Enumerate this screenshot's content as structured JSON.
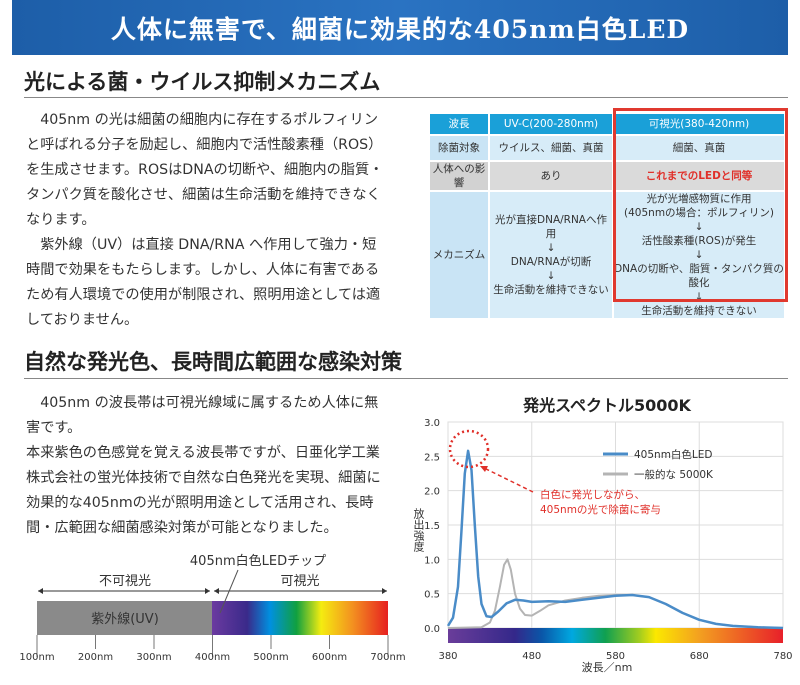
{
  "banner": {
    "title": "人体に無害で、細菌に効果的な405nm白色LED"
  },
  "section1": {
    "heading": "光による菌・ウイルス抑制メカニズム",
    "paragraph": "　405nm の光は細菌の細胞内に存在するポルフィリンと呼ばれる分子を励起し、細胞内で活性酸素種（ROS）を生成させます。ROSはDNAの切断や、細胞内の脂質・タンパク質を酸化させ、細菌は生命活動を維持できなくなります。\n　紫外線（UV）は直接 DNA/RNA へ作用して強力・短時間で効果をもたらします。しかし、人体に有害であるため有人環境での使用が制限され、照明用途としては適しておりません。",
    "table": {
      "header": [
        "波長",
        "UV-C(200-280nm)",
        "可視光(380-420nm)"
      ],
      "rows": [
        [
          "除菌対象",
          "ウイルス、細菌、真菌",
          "細菌、真菌"
        ],
        [
          "人体への影響",
          "あり",
          "これまでのLEDと同等"
        ],
        [
          "メカニズム",
          "光が直接DNA/RNAへ作用\n↓\nDNA/RNAが切断\n↓\n生命活動を維持できない",
          "光が光増感物質に作用\n(405nmの場合：ポルフィリン)\n↓\n活性酸素種(ROS)が発生\n↓\nDNAの切断や、脂質・タンパク質の酸化\n↓\n生命活動を維持できない"
        ]
      ],
      "highlight_color": "#e0392f"
    }
  },
  "section2": {
    "heading": "自然な発光色、長時間広範囲な感染対策",
    "paragraph": "　405nm の波長帯は可視光線域に属するため人体に無害です。\n本来紫色の色感覚を覚える波長帯ですが、日亜化学工業株式会社の蛍光体技術で自然な白色発光を実現、細菌に効果的な405nmの光が照明用途として活用され、長時間・広範囲な細菌感染対策が可能となりました。",
    "band": {
      "chip_label": "405nm白色LEDチップ",
      "invisible_label": "不可視光",
      "visible_label": "可視光",
      "uv_label": "紫外線(UV)",
      "ticks": [
        "100nm",
        "200nm",
        "300nm",
        "400nm",
        "500nm",
        "600nm",
        "700nm"
      ]
    }
  },
  "chart_data": {
    "type": "line",
    "title": "発光スペクトル5000K",
    "xlabel": "波長／nm",
    "ylabel": "放出強度",
    "xlim": [
      380,
      780
    ],
    "ylim": [
      0,
      3.0
    ],
    "xticks": [
      "380",
      "480",
      "580",
      "680",
      "780"
    ],
    "yticks": [
      "0.0",
      "0.5",
      "1.0",
      "1.5",
      "2.0",
      "2.5",
      "3.0"
    ],
    "grid": true,
    "legend_position": "top-right",
    "annotation": "白色に発光しながら、\n405nmの光で除菌に寄与",
    "series": [
      {
        "name": "405nm白色LED",
        "color": "#4a8cc8",
        "x": [
          380,
          386,
          392,
          396,
          400,
          404,
          408,
          412,
          416,
          420,
          426,
          432,
          440,
          450,
          460,
          470,
          480,
          500,
          520,
          540,
          560,
          580,
          600,
          620,
          640,
          660,
          680,
          700,
          720,
          750,
          780
        ],
        "y": [
          0.03,
          0.15,
          0.6,
          1.4,
          2.25,
          2.58,
          2.3,
          1.5,
          0.75,
          0.35,
          0.17,
          0.16,
          0.24,
          0.36,
          0.41,
          0.4,
          0.38,
          0.39,
          0.38,
          0.41,
          0.44,
          0.47,
          0.48,
          0.45,
          0.35,
          0.22,
          0.12,
          0.06,
          0.03,
          0.01,
          0.0
        ]
      },
      {
        "name": "一般的な 5000K",
        "color": "#b4b4b4",
        "x": [
          380,
          420,
          430,
          436,
          442,
          447,
          451,
          455,
          460,
          466,
          472,
          480,
          490,
          500,
          520,
          540,
          560,
          580,
          600,
          620,
          640,
          660,
          680,
          700,
          720,
          750,
          780
        ],
        "y": [
          0,
          0.01,
          0.08,
          0.25,
          0.6,
          0.92,
          1.0,
          0.85,
          0.5,
          0.28,
          0.19,
          0.18,
          0.25,
          0.33,
          0.4,
          0.44,
          0.47,
          0.48,
          0.48,
          0.45,
          0.35,
          0.22,
          0.12,
          0.06,
          0.03,
          0.01,
          0.0
        ]
      }
    ]
  }
}
